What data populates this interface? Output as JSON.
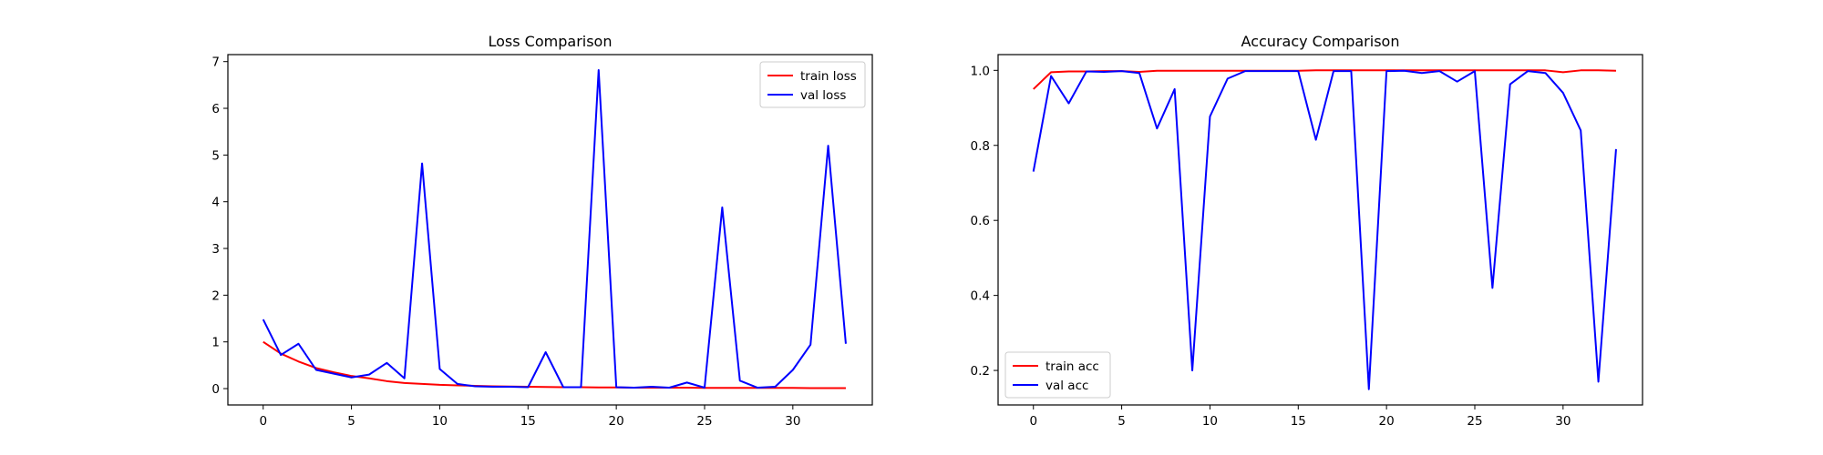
{
  "chart_data": [
    {
      "type": "line",
      "title": "Loss Comparison",
      "xlabel": "",
      "ylabel": "",
      "xlim": [
        -2,
        34.5
      ],
      "ylim": [
        -0.35,
        7.15
      ],
      "xticks": [
        0,
        5,
        10,
        15,
        20,
        25,
        30
      ],
      "yticks": [
        0,
        1,
        2,
        3,
        4,
        5,
        6,
        7
      ],
      "legend": "top-right",
      "grid": false,
      "x": [
        0,
        1,
        2,
        3,
        4,
        5,
        6,
        7,
        8,
        9,
        10,
        11,
        12,
        13,
        14,
        15,
        16,
        17,
        18,
        19,
        20,
        21,
        22,
        23,
        24,
        25,
        26,
        27,
        28,
        29,
        30,
        31,
        32,
        33
      ],
      "series": [
        {
          "name": "train loss",
          "color": "#ff0000",
          "values": [
            1.0,
            0.75,
            0.58,
            0.44,
            0.35,
            0.27,
            0.22,
            0.16,
            0.12,
            0.1,
            0.08,
            0.07,
            0.06,
            0.05,
            0.045,
            0.04,
            0.035,
            0.03,
            0.03,
            0.025,
            0.025,
            0.02,
            0.02,
            0.02,
            0.02,
            0.015,
            0.015,
            0.015,
            0.015,
            0.015,
            0.015,
            0.01,
            0.01,
            0.01
          ]
        },
        {
          "name": "val loss",
          "color": "#0000ff",
          "values": [
            1.48,
            0.72,
            0.96,
            0.4,
            0.32,
            0.24,
            0.3,
            0.55,
            0.22,
            4.82,
            0.42,
            0.1,
            0.05,
            0.04,
            0.04,
            0.03,
            0.78,
            0.03,
            0.03,
            6.82,
            0.03,
            0.02,
            0.04,
            0.02,
            0.13,
            0.02,
            3.88,
            0.17,
            0.02,
            0.04,
            0.4,
            0.94,
            5.2,
            0.96
          ]
        }
      ]
    },
    {
      "type": "line",
      "title": "Accuracy Comparison",
      "xlabel": "",
      "ylabel": "",
      "xlim": [
        -2,
        34.5
      ],
      "ylim": [
        0.108,
        1.042
      ],
      "xticks": [
        0,
        5,
        10,
        15,
        20,
        25,
        30
      ],
      "yticks": [
        0.2,
        0.4,
        0.6,
        0.8,
        1.0
      ],
      "ytick_labels": [
        "0.2",
        "0.4",
        "0.6",
        "0.8",
        "1.0"
      ],
      "legend": "bottom-left",
      "grid": false,
      "x": [
        0,
        1,
        2,
        3,
        4,
        5,
        6,
        7,
        8,
        9,
        10,
        11,
        12,
        13,
        14,
        15,
        16,
        17,
        18,
        19,
        20,
        21,
        22,
        23,
        24,
        25,
        26,
        27,
        28,
        29,
        30,
        31,
        32,
        33
      ],
      "series": [
        {
          "name": "train acc",
          "color": "#ff0000",
          "values": [
            0.95,
            0.995,
            0.997,
            0.997,
            0.998,
            0.998,
            0.996,
            0.999,
            0.999,
            0.999,
            0.999,
            0.999,
            0.999,
            0.999,
            0.999,
            0.999,
            1.0,
            1.0,
            1.0,
            1.0,
            1.0,
            1.0,
            1.0,
            1.0,
            1.0,
            1.0,
            1.0,
            1.0,
            1.0,
            1.0,
            0.995,
            1.0,
            1.0,
            0.999
          ]
        },
        {
          "name": "val acc",
          "color": "#0000ff",
          "values": [
            0.73,
            0.985,
            0.912,
            0.997,
            0.996,
            0.998,
            0.993,
            0.845,
            0.95,
            0.2,
            0.877,
            0.978,
            0.998,
            0.998,
            0.998,
            0.998,
            0.815,
            0.998,
            0.998,
            0.15,
            0.998,
            0.999,
            0.993,
            0.998,
            0.97,
            0.998,
            0.42,
            0.963,
            0.998,
            0.993,
            0.94,
            0.84,
            0.17,
            0.79
          ]
        }
      ]
    }
  ]
}
